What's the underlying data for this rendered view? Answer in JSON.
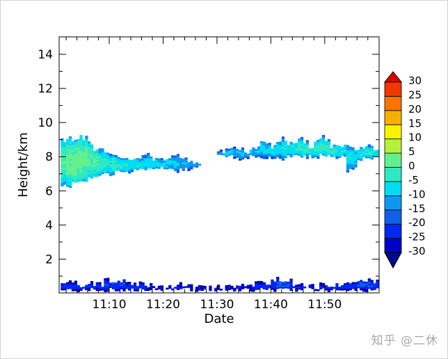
{
  "chart_data": {
    "type": "heatmap",
    "title": "",
    "xlabel": "Date",
    "ylabel": "Height/km",
    "xlim": [
      "11:01",
      "12:00"
    ],
    "ylim": [
      0,
      15
    ],
    "xticks": [
      "11:10",
      "11:20",
      "11:30",
      "11:40",
      "11:50"
    ],
    "yticks": [
      2,
      4,
      6,
      8,
      10,
      12,
      14
    ],
    "grid": false,
    "colorbar": {
      "levels": [
        -30,
        -25,
        -20,
        -15,
        -10,
        -5,
        0,
        5,
        10,
        15,
        20,
        25,
        30
      ],
      "colors": [
        "#000a8c",
        "#0000c8",
        "#0028f0",
        "#1060e8",
        "#1098f0",
        "#00dcf4",
        "#30e8c4",
        "#64f08c",
        "#b4f040",
        "#f8f400",
        "#f8b000",
        "#f87400",
        "#f03800",
        "#e00000"
      ],
      "extend": "both",
      "placement": "right"
    },
    "echo_layer": {
      "columns": [
        [
          "11:01",
          6.4,
          8.9,
          0
        ],
        [
          "11:02",
          6.3,
          9.0,
          2
        ],
        [
          "11:03",
          6.4,
          8.8,
          3
        ],
        [
          "11:04",
          6.5,
          9.1,
          3
        ],
        [
          "11:05",
          6.6,
          9.0,
          2
        ],
        [
          "11:06",
          6.7,
          8.8,
          0
        ],
        [
          "11:07",
          6.8,
          8.5,
          0
        ],
        [
          "11:08",
          6.9,
          8.3,
          -2
        ],
        [
          "11:09",
          7.0,
          8.2,
          -3
        ],
        [
          "11:10",
          7.0,
          8.0,
          -3
        ],
        [
          "11:11",
          7.1,
          7.9,
          -4
        ],
        [
          "11:12",
          7.1,
          7.8,
          -5
        ],
        [
          "11:13",
          7.1,
          7.9,
          -5
        ],
        [
          "11:14",
          7.2,
          7.9,
          -5
        ],
        [
          "11:15",
          7.2,
          7.8,
          -6
        ],
        [
          "11:16",
          7.2,
          7.9,
          -6
        ],
        [
          "11:17",
          7.2,
          8.0,
          -6
        ],
        [
          "11:18",
          7.3,
          7.9,
          -7
        ],
        [
          "11:19",
          7.3,
          7.8,
          -8
        ],
        [
          "11:20",
          7.2,
          7.9,
          -8
        ],
        [
          "11:21",
          7.2,
          8.0,
          -8
        ],
        [
          "11:22",
          7.1,
          8.0,
          -9
        ],
        [
          "11:23",
          7.2,
          7.9,
          -10
        ],
        [
          "11:24",
          7.3,
          7.8,
          -10
        ],
        [
          "11:25",
          7.3,
          7.7,
          -12
        ],
        [
          "11:26",
          7.4,
          7.6,
          -14
        ],
        [
          "11:30",
          8.0,
          8.2,
          -12
        ],
        [
          "11:31",
          8.0,
          8.3,
          -10
        ],
        [
          "11:32",
          8.0,
          8.4,
          -10
        ],
        [
          "11:33",
          8.0,
          8.4,
          -10
        ],
        [
          "11:34",
          7.9,
          8.4,
          -9
        ],
        [
          "11:35",
          8.0,
          8.2,
          -12
        ],
        [
          "11:36",
          8.0,
          8.5,
          -10
        ],
        [
          "11:37",
          8.0,
          8.5,
          -10
        ],
        [
          "11:38",
          8.0,
          8.9,
          -8
        ],
        [
          "11:39",
          8.0,
          8.7,
          -8
        ],
        [
          "11:40",
          8.0,
          8.6,
          -7
        ],
        [
          "11:41",
          8.0,
          8.8,
          -6
        ],
        [
          "11:42",
          7.9,
          9.0,
          -5
        ],
        [
          "11:43",
          8.0,
          8.8,
          -5
        ],
        [
          "11:44",
          8.0,
          8.9,
          -5
        ],
        [
          "11:45",
          8.0,
          9.0,
          -4
        ],
        [
          "11:46",
          8.0,
          8.8,
          -4
        ],
        [
          "11:47",
          8.0,
          8.6,
          -5
        ],
        [
          "11:48",
          8.0,
          8.9,
          -4
        ],
        [
          "11:49",
          8.1,
          9.1,
          -3
        ],
        [
          "11:50",
          8.0,
          8.8,
          -3
        ],
        [
          "11:51",
          8.0,
          8.6,
          -4
        ],
        [
          "11:52",
          8.0,
          8.6,
          -5
        ],
        [
          "11:53",
          8.0,
          8.7,
          -5
        ],
        [
          "11:54",
          7.2,
          8.6,
          -6
        ],
        [
          "11:55",
          7.3,
          8.5,
          -7
        ],
        [
          "11:56",
          7.8,
          8.5,
          -6
        ],
        [
          "11:57",
          7.9,
          8.6,
          -5
        ],
        [
          "11:58",
          7.9,
          8.5,
          -5
        ],
        [
          "11:59",
          7.9,
          8.5,
          -5
        ]
      ],
      "columns_format": [
        "time",
        "base_km",
        "top_km",
        "max_dBZ"
      ]
    },
    "low_clutter": {
      "columns": [
        [
          "11:01",
          0.2,
          0.5,
          -22
        ],
        [
          "11:05",
          0.2,
          0.5,
          -22
        ],
        [
          "11:09",
          0.2,
          0.7,
          -20
        ],
        [
          "11:13",
          0.2,
          0.5,
          -22
        ],
        [
          "11:17",
          0.2,
          0.4,
          -24
        ],
        [
          "11:21",
          0.2,
          0.4,
          -25
        ],
        [
          "11:25",
          0.2,
          0.3,
          -25
        ],
        [
          "11:29",
          0.2,
          0.3,
          -25
        ],
        [
          "11:33",
          0.2,
          0.4,
          -25
        ],
        [
          "11:37",
          0.2,
          0.5,
          -22
        ],
        [
          "11:40",
          0.2,
          0.8,
          -20
        ],
        [
          "11:44",
          0.2,
          0.4,
          -24
        ],
        [
          "11:48",
          0.2,
          0.4,
          -24
        ],
        [
          "11:52",
          0.2,
          0.5,
          -22
        ],
        [
          "11:56",
          0.2,
          0.7,
          -20
        ]
      ],
      "columns_format": [
        "time",
        "base_km",
        "top_km",
        "max_dBZ"
      ]
    }
  },
  "watermark": "知乎 @二休"
}
